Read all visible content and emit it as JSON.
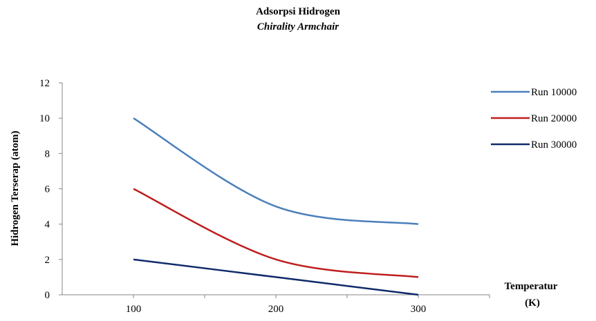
{
  "chart_data": {
    "type": "line",
    "title": "Adsorpsi Hidrogen",
    "subtitle": "Chirality Armchair",
    "xlabel_line1": "Temperatur",
    "xlabel_line2": "(K)",
    "ylabel": "Hidrogen Terserap (atom)",
    "x": [
      100,
      200,
      300
    ],
    "xlim": [
      0,
      4
    ],
    "xticks": [
      "100",
      "200",
      "300"
    ],
    "ylim": [
      0,
      12
    ],
    "yticks": [
      "0",
      "2",
      "4",
      "6",
      "8",
      "10",
      "12"
    ],
    "legend_position": "right",
    "grid": false,
    "smooth": true,
    "series": [
      {
        "name": "Run 10000",
        "color": "#4a7ebb",
        "values": [
          10,
          5,
          4
        ]
      },
      {
        "name": "Run 20000",
        "color": "#be1e1e",
        "values": [
          6,
          2,
          1
        ]
      },
      {
        "name": "Run 30000",
        "color": "#0f2a6b",
        "values": [
          2,
          1,
          0
        ]
      }
    ]
  }
}
